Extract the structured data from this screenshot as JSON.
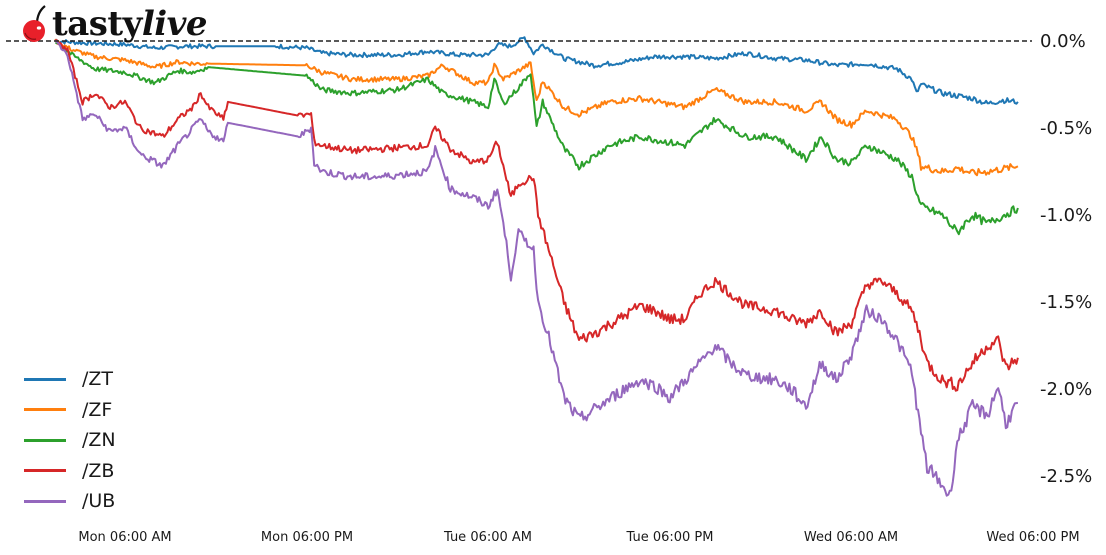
{
  "brand": {
    "logo_name": "tastylive",
    "logo_part1": "tasty",
    "logo_part2": "live",
    "logo_icon": "cherry-icon",
    "cherry_color": "#e8202a"
  },
  "chart_data": {
    "type": "line",
    "title": "",
    "xlabel": "",
    "ylabel": "",
    "y_unit": "%",
    "ylim": [
      -2.7,
      0.1
    ],
    "grid": false,
    "legend_position": "lower left",
    "reference_line": {
      "y": 0.0,
      "style": "dashed",
      "color": "#222222"
    },
    "y_ticks": [
      "0.0%",
      "-0.5%",
      "-1.0%",
      "-1.5%",
      "-2.0%",
      "-2.5%"
    ],
    "y_tick_values": [
      0.0,
      -0.5,
      -1.0,
      -1.5,
      -2.0,
      -2.5
    ],
    "x_ticks": [
      "Mon 06:00 AM",
      "Mon 06:00 PM",
      "Tue 06:00 AM",
      "Tue 06:00 PM",
      "Wed 06:00 AM",
      "Wed 06:00 PM"
    ],
    "x_tick_hours": [
      6,
      18,
      30,
      42,
      54,
      66
    ],
    "x_unit": "hours since Mon 00:00 (approx)",
    "series": [
      {
        "name": "/ZT",
        "color": "#1f77b4",
        "points": [
          [
            1.4,
            0.0
          ],
          [
            3,
            -0.01
          ],
          [
            6,
            -0.02
          ],
          [
            8,
            -0.04
          ],
          [
            10,
            -0.03
          ],
          [
            12,
            -0.03
          ],
          [
            16,
            -0.03
          ],
          [
            18,
            -0.04
          ],
          [
            19,
            -0.07
          ],
          [
            21,
            -0.08
          ],
          [
            24,
            -0.08
          ],
          [
            26,
            -0.06
          ],
          [
            28,
            -0.08
          ],
          [
            30,
            -0.08
          ],
          [
            30.6,
            -0.02
          ],
          [
            31.5,
            -0.03
          ],
          [
            32.4,
            0.02
          ],
          [
            33,
            -0.07
          ],
          [
            33.6,
            -0.02
          ],
          [
            35,
            -0.1
          ],
          [
            37,
            -0.14
          ],
          [
            39,
            -0.12
          ],
          [
            41,
            -0.09
          ],
          [
            43,
            -0.09
          ],
          [
            45,
            -0.1
          ],
          [
            47,
            -0.07
          ],
          [
            49,
            -0.1
          ],
          [
            51,
            -0.11
          ],
          [
            53,
            -0.14
          ],
          [
            55,
            -0.13
          ],
          [
            57,
            -0.16
          ],
          [
            58,
            -0.22
          ],
          [
            58.3,
            -0.3
          ],
          [
            58.6,
            -0.25
          ],
          [
            60,
            -0.3
          ],
          [
            62,
            -0.33
          ],
          [
            63,
            -0.36
          ],
          [
            64,
            -0.34
          ],
          [
            65,
            -0.35
          ]
        ]
      },
      {
        "name": "/ZF",
        "color": "#ff7f0e",
        "points": [
          [
            1.4,
            0.0
          ],
          [
            2.5,
            -0.05
          ],
          [
            4,
            -0.09
          ],
          [
            6,
            -0.11
          ],
          [
            8,
            -0.15
          ],
          [
            9.5,
            -0.12
          ],
          [
            10.5,
            -0.13
          ],
          [
            11.5,
            -0.13
          ],
          [
            18,
            -0.14
          ],
          [
            19,
            -0.18
          ],
          [
            21,
            -0.22
          ],
          [
            24,
            -0.22
          ],
          [
            26,
            -0.2
          ],
          [
            27,
            -0.14
          ],
          [
            29,
            -0.24
          ],
          [
            30,
            -0.24
          ],
          [
            30.4,
            -0.14
          ],
          [
            31,
            -0.22
          ],
          [
            32,
            -0.17
          ],
          [
            32.8,
            -0.13
          ],
          [
            33.2,
            -0.35
          ],
          [
            33.6,
            -0.23
          ],
          [
            35,
            -0.38
          ],
          [
            36,
            -0.42
          ],
          [
            38,
            -0.35
          ],
          [
            40,
            -0.33
          ],
          [
            43,
            -0.38
          ],
          [
            45,
            -0.28
          ],
          [
            47,
            -0.35
          ],
          [
            49,
            -0.35
          ],
          [
            51,
            -0.4
          ],
          [
            52,
            -0.35
          ],
          [
            53,
            -0.45
          ],
          [
            54,
            -0.48
          ],
          [
            55,
            -0.4
          ],
          [
            57,
            -0.45
          ],
          [
            58,
            -0.55
          ],
          [
            58.4,
            -0.65
          ],
          [
            58.6,
            -0.72
          ],
          [
            60,
            -0.75
          ],
          [
            61,
            -0.73
          ],
          [
            62,
            -0.76
          ],
          [
            63,
            -0.75
          ],
          [
            65,
            -0.72
          ]
        ]
      },
      {
        "name": "/ZN",
        "color": "#2ca02c",
        "points": [
          [
            1.4,
            0.0
          ],
          [
            2.5,
            -0.08
          ],
          [
            4,
            -0.16
          ],
          [
            6,
            -0.18
          ],
          [
            8,
            -0.24
          ],
          [
            9.5,
            -0.17
          ],
          [
            10.5,
            -0.18
          ],
          [
            11.5,
            -0.15
          ],
          [
            18,
            -0.2
          ],
          [
            19,
            -0.28
          ],
          [
            21,
            -0.3
          ],
          [
            24,
            -0.28
          ],
          [
            26,
            -0.22
          ],
          [
            27,
            -0.3
          ],
          [
            29,
            -0.35
          ],
          [
            30,
            -0.38
          ],
          [
            30.4,
            -0.22
          ],
          [
            31,
            -0.36
          ],
          [
            32,
            -0.27
          ],
          [
            32.8,
            -0.18
          ],
          [
            33.2,
            -0.5
          ],
          [
            33.6,
            -0.35
          ],
          [
            35,
            -0.62
          ],
          [
            36,
            -0.72
          ],
          [
            38,
            -0.6
          ],
          [
            40,
            -0.55
          ],
          [
            43,
            -0.6
          ],
          [
            45,
            -0.45
          ],
          [
            47,
            -0.55
          ],
          [
            49,
            -0.55
          ],
          [
            51,
            -0.68
          ],
          [
            52,
            -0.55
          ],
          [
            53,
            -0.68
          ],
          [
            54,
            -0.7
          ],
          [
            55,
            -0.6
          ],
          [
            57,
            -0.68
          ],
          [
            58,
            -0.78
          ],
          [
            58.4,
            -0.9
          ],
          [
            58.6,
            -0.95
          ],
          [
            60,
            -1.0
          ],
          [
            61,
            -1.1
          ],
          [
            62,
            -1.0
          ],
          [
            63,
            -1.05
          ],
          [
            65,
            -0.96
          ]
        ]
      },
      {
        "name": "/ZB",
        "color": "#d62728",
        "points": [
          [
            1.4,
            0.0
          ],
          [
            2.2,
            -0.05
          ],
          [
            3.2,
            -0.35
          ],
          [
            4,
            -0.3
          ],
          [
            5,
            -0.38
          ],
          [
            6,
            -0.35
          ],
          [
            7,
            -0.5
          ],
          [
            8.5,
            -0.55
          ],
          [
            9.5,
            -0.45
          ],
          [
            10.5,
            -0.38
          ],
          [
            11,
            -0.3
          ],
          [
            11.5,
            -0.38
          ],
          [
            12.5,
            -0.45
          ],
          [
            12.8,
            -0.35
          ],
          [
            17.5,
            -0.43
          ],
          [
            18.3,
            -0.42
          ],
          [
            18.5,
            -0.58
          ],
          [
            19,
            -0.6
          ],
          [
            21,
            -0.63
          ],
          [
            23,
            -0.62
          ],
          [
            26,
            -0.6
          ],
          [
            26.5,
            -0.5
          ],
          [
            27.5,
            -0.62
          ],
          [
            29,
            -0.7
          ],
          [
            30,
            -0.68
          ],
          [
            30.6,
            -0.58
          ],
          [
            31,
            -0.72
          ],
          [
            31.5,
            -0.9
          ],
          [
            32,
            -0.82
          ],
          [
            33,
            -0.78
          ],
          [
            33.3,
            -1.0
          ],
          [
            34,
            -1.2
          ],
          [
            35,
            -1.5
          ],
          [
            36,
            -1.72
          ],
          [
            37,
            -1.68
          ],
          [
            39,
            -1.58
          ],
          [
            40,
            -1.52
          ],
          [
            41,
            -1.55
          ],
          [
            42,
            -1.6
          ],
          [
            43,
            -1.6
          ],
          [
            44,
            -1.45
          ],
          [
            45,
            -1.38
          ],
          [
            46,
            -1.45
          ],
          [
            47,
            -1.52
          ],
          [
            49,
            -1.55
          ],
          [
            50,
            -1.6
          ],
          [
            51,
            -1.62
          ],
          [
            52,
            -1.55
          ],
          [
            53,
            -1.68
          ],
          [
            54,
            -1.62
          ],
          [
            55,
            -1.4
          ],
          [
            56,
            -1.38
          ],
          [
            57,
            -1.45
          ],
          [
            58,
            -1.55
          ],
          [
            58.5,
            -1.68
          ],
          [
            59,
            -1.85
          ],
          [
            60,
            -1.95
          ],
          [
            61,
            -1.98
          ],
          [
            62,
            -1.85
          ],
          [
            63,
            -1.75
          ],
          [
            63.7,
            -1.72
          ],
          [
            64.2,
            -1.88
          ],
          [
            65,
            -1.82
          ]
        ]
      },
      {
        "name": "/UB",
        "color": "#9467bd",
        "points": [
          [
            1.4,
            0.0
          ],
          [
            2.2,
            -0.08
          ],
          [
            3.2,
            -0.45
          ],
          [
            4,
            -0.42
          ],
          [
            5,
            -0.52
          ],
          [
            6,
            -0.5
          ],
          [
            7,
            -0.65
          ],
          [
            8.5,
            -0.72
          ],
          [
            9.5,
            -0.6
          ],
          [
            10.5,
            -0.5
          ],
          [
            11,
            -0.45
          ],
          [
            11.5,
            -0.52
          ],
          [
            12.5,
            -0.58
          ],
          [
            12.8,
            -0.47
          ],
          [
            17.5,
            -0.55
          ],
          [
            18.3,
            -0.5
          ],
          [
            18.5,
            -0.7
          ],
          [
            19,
            -0.75
          ],
          [
            21,
            -0.78
          ],
          [
            23,
            -0.78
          ],
          [
            26,
            -0.75
          ],
          [
            26.5,
            -0.62
          ],
          [
            27.5,
            -0.85
          ],
          [
            29,
            -0.9
          ],
          [
            30,
            -0.95
          ],
          [
            30.6,
            -0.85
          ],
          [
            31,
            -1.05
          ],
          [
            31.5,
            -1.35
          ],
          [
            32,
            -1.1
          ],
          [
            33,
            -1.2
          ],
          [
            33.3,
            -1.5
          ],
          [
            34,
            -1.7
          ],
          [
            35,
            -2.05
          ],
          [
            36,
            -2.18
          ],
          [
            37,
            -2.12
          ],
          [
            39,
            -2.0
          ],
          [
            40,
            -1.95
          ],
          [
            41,
            -1.98
          ],
          [
            42,
            -2.05
          ],
          [
            43,
            -1.95
          ],
          [
            44,
            -1.85
          ],
          [
            45,
            -1.75
          ],
          [
            46,
            -1.85
          ],
          [
            47,
            -1.92
          ],
          [
            49,
            -1.95
          ],
          [
            50,
            -2.0
          ],
          [
            51,
            -2.1
          ],
          [
            52,
            -1.85
          ],
          [
            53,
            -1.95
          ],
          [
            54,
            -1.8
          ],
          [
            55,
            -1.55
          ],
          [
            56,
            -1.6
          ],
          [
            57,
            -1.72
          ],
          [
            58,
            -1.9
          ],
          [
            58.5,
            -2.2
          ],
          [
            59,
            -2.45
          ],
          [
            60,
            -2.55
          ],
          [
            60.5,
            -2.62
          ],
          [
            61,
            -2.3
          ],
          [
            62,
            -2.1
          ],
          [
            63,
            -2.15
          ],
          [
            63.7,
            -1.98
          ],
          [
            64.2,
            -2.2
          ],
          [
            65,
            -2.08
          ]
        ]
      }
    ]
  }
}
